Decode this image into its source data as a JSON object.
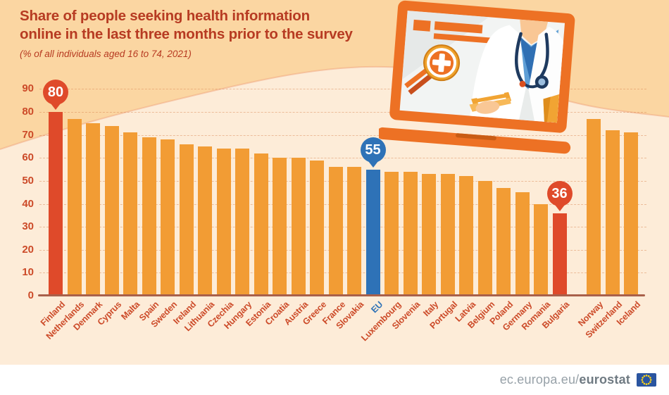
{
  "title": {
    "line1": "Share of people seeking health information",
    "line2": "online in the last three months prior to the survey"
  },
  "subtitle": "(% of all individuals aged 16 to 74, 2021)",
  "illustration": {
    "name": "laptop-with-doctor-and-health-search-magnifier"
  },
  "footer": {
    "url_prefix": "ec.europa.eu/",
    "url_bold": "eurostat",
    "flag_icon": "eu-flag-icon"
  },
  "colors": {
    "title": "#b73b22",
    "axis": "#cc4a28",
    "bar": "#f29c34",
    "bar_red": "#df4a2a",
    "bar_blue": "#2e72b7",
    "baseline": "#a9604a",
    "grid": "#d9834f",
    "bg_top": "#fbd6a2",
    "bg_plot": "#fdecd8",
    "wave_edge": "#f0a47c",
    "laptop_orange": "#ed7124",
    "footer_bg": "#ffffff",
    "footer_text": "#97a1a8",
    "footer_text_bold": "#6f7a82",
    "flag_blue": "#2a55a0",
    "flag_star": "#ffd617"
  },
  "chart_data": {
    "type": "bar",
    "title": "Share of people seeking health information online in the last three months prior to the survey",
    "unit_note": "% of all individuals aged 16 to 74, 2021",
    "xlabel": "",
    "ylabel": "",
    "ylim": [
      0,
      90
    ],
    "yticks": [
      0,
      10,
      20,
      30,
      40,
      50,
      60,
      70,
      80,
      90
    ],
    "grid": "horizontal-dashed",
    "legend": "none",
    "highlighted": {
      "max": "Finland",
      "eu_average": "EU",
      "min": "Bulgaria"
    },
    "bars": [
      {
        "name": "Finland",
        "value": 80,
        "role": "highlight",
        "callout": true
      },
      {
        "name": "Netherlands",
        "value": 77
      },
      {
        "name": "Denmark",
        "value": 75
      },
      {
        "name": "Cyprus",
        "value": 74
      },
      {
        "name": "Malta",
        "value": 71
      },
      {
        "name": "Spain",
        "value": 69
      },
      {
        "name": "Sweden",
        "value": 68
      },
      {
        "name": "Ireland",
        "value": 66
      },
      {
        "name": "Lithuania",
        "value": 65
      },
      {
        "name": "Czechia",
        "value": 64
      },
      {
        "name": "Hungary",
        "value": 64
      },
      {
        "name": "Estonia",
        "value": 62
      },
      {
        "name": "Croatia",
        "value": 60
      },
      {
        "name": "Austria",
        "value": 60
      },
      {
        "name": "Greece",
        "value": 59
      },
      {
        "name": "France",
        "value": 56
      },
      {
        "name": "Slovakia",
        "value": 56
      },
      {
        "name": "EU",
        "value": 55,
        "role": "eu",
        "callout": true
      },
      {
        "name": "Luxembourg",
        "value": 54
      },
      {
        "name": "Slovenia",
        "value": 54
      },
      {
        "name": "Italy",
        "value": 53
      },
      {
        "name": "Portugal",
        "value": 53
      },
      {
        "name": "Latvia",
        "value": 52
      },
      {
        "name": "Belgium",
        "value": 50
      },
      {
        "name": "Poland",
        "value": 47
      },
      {
        "name": "Germany",
        "value": 45
      },
      {
        "name": "Romania",
        "value": 40
      },
      {
        "name": "Bulgaria",
        "value": 36,
        "role": "highlight",
        "callout": true
      },
      {
        "name": "Norway",
        "value": 77,
        "group": "efta"
      },
      {
        "name": "Switzerland",
        "value": 72,
        "group": "efta"
      },
      {
        "name": "Iceland",
        "value": 71,
        "group": "efta"
      }
    ]
  }
}
